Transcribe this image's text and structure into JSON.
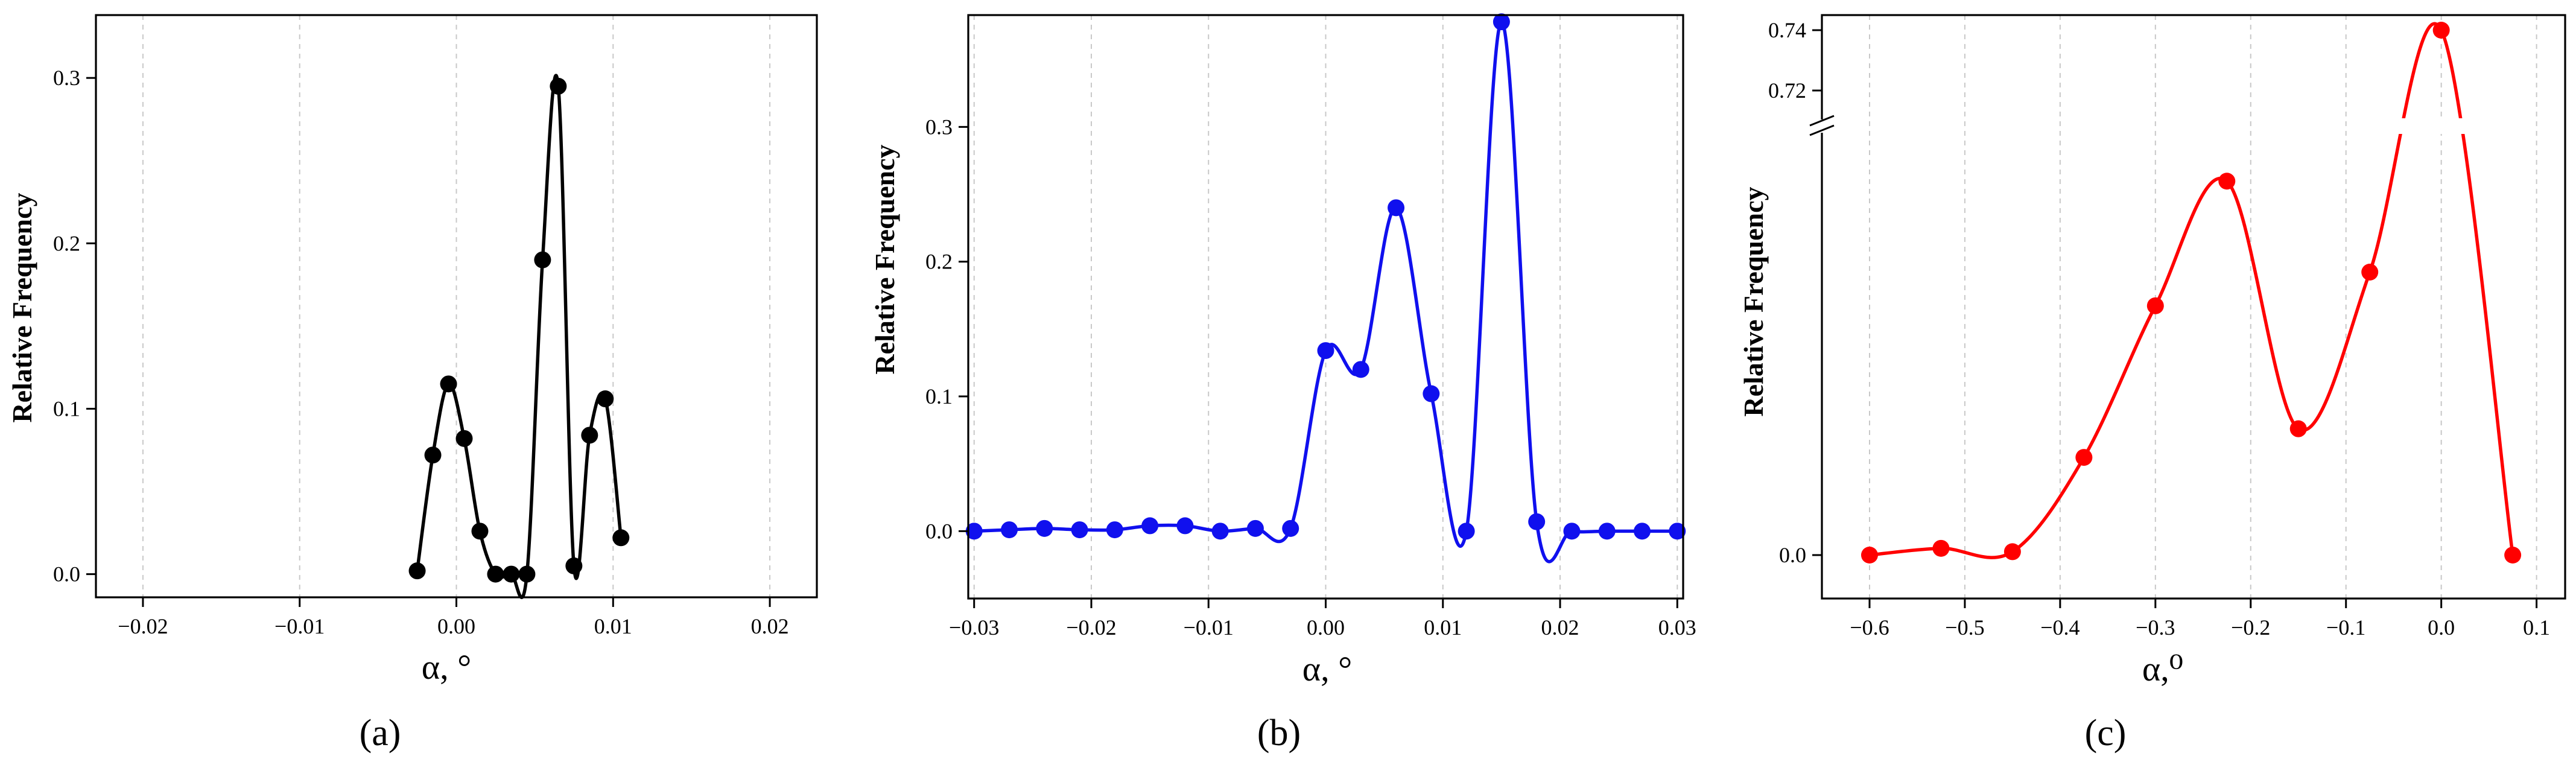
{
  "panels": [
    {
      "id": "a",
      "label": "(a)",
      "color": "#000000",
      "y_title": "Relative Frequency",
      "x_title": "α, °",
      "chart_data": {
        "type": "line",
        "title": "",
        "xlabel": "α, °",
        "ylabel": "Relative Frequency",
        "xlim": [
          -0.023,
          0.023
        ],
        "ylim": [
          -0.014,
          0.338
        ],
        "x_ticks": [
          -0.02,
          -0.01,
          0.0,
          0.01,
          0.02
        ],
        "x_tick_labels": [
          "−0.02",
          "−0.01",
          "0.00",
          "0.01",
          "0.02"
        ],
        "y_ticks": [
          0.0,
          0.1,
          0.2,
          0.3
        ],
        "y_tick_labels": [
          "0.0",
          "0.1",
          "0.2",
          "0.3"
        ],
        "grid": "vertical dotted",
        "series": [
          {
            "points": [
              [
                -0.0025,
                0.002
              ],
              [
                -0.0015,
                0.072
              ],
              [
                -0.0005,
                0.115
              ],
              [
                0.0005,
                0.082
              ],
              [
                0.0015,
                0.026
              ],
              [
                0.0025,
                0.0
              ],
              [
                0.0035,
                0.0
              ],
              [
                0.0045,
                0.0
              ],
              [
                0.0055,
                0.19
              ],
              [
                0.0065,
                0.295
              ],
              [
                0.0075,
                0.005
              ],
              [
                0.0085,
                0.084
              ],
              [
                0.0095,
                0.106
              ],
              [
                0.0105,
                0.022
              ]
            ]
          }
        ]
      }
    },
    {
      "id": "b",
      "label": "(b)",
      "color": "#1010ee",
      "y_title": "Relative Frequency",
      "x_title": "α, °",
      "chart_data": {
        "type": "line",
        "title": "",
        "xlabel": "α, °",
        "ylabel": "Relative Frequency",
        "xlim": [
          -0.0305,
          0.0305
        ],
        "ylim": [
          -0.05,
          0.383
        ],
        "x_ticks": [
          -0.03,
          -0.02,
          -0.01,
          0.0,
          0.01,
          0.02,
          0.03
        ],
        "x_tick_labels": [
          "−0.03",
          "−0.02",
          "−0.01",
          "0.00",
          "0.01",
          "0.02",
          "0.03"
        ],
        "y_ticks": [
          0.0,
          0.1,
          0.2,
          0.3
        ],
        "y_tick_labels": [
          "0.0",
          "0.1",
          "0.2",
          "0.3"
        ],
        "grid": "vertical dotted",
        "series": [
          {
            "points": [
              [
                -0.03,
                0.0
              ],
              [
                -0.027,
                0.001
              ],
              [
                -0.024,
                0.002
              ],
              [
                -0.021,
                0.001
              ],
              [
                -0.018,
                0.001
              ],
              [
                -0.015,
                0.004
              ],
              [
                -0.012,
                0.004
              ],
              [
                -0.009,
                0.0
              ],
              [
                -0.006,
                0.002
              ],
              [
                -0.003,
                0.002
              ],
              [
                0.0,
                0.134
              ],
              [
                0.003,
                0.12
              ],
              [
                0.006,
                0.24
              ],
              [
                0.009,
                0.102
              ],
              [
                0.012,
                0.0
              ],
              [
                0.015,
                0.378
              ],
              [
                0.018,
                0.007
              ],
              [
                0.021,
                0.0
              ],
              [
                0.024,
                0.0
              ],
              [
                0.027,
                0.0
              ],
              [
                0.03,
                0.0
              ]
            ]
          }
        ]
      }
    },
    {
      "id": "c",
      "label": "(c)",
      "color": "#ff0000",
      "y_title": "Relative Frequency",
      "x_title": "α,⁰",
      "chart_data": {
        "type": "line",
        "title": "",
        "xlabel": "α,⁰",
        "ylabel": "Relative Frequency",
        "xlim": [
          -0.65,
          0.13
        ],
        "x_ticks": [
          -0.6,
          -0.5,
          -0.4,
          -0.3,
          -0.2,
          -0.1,
          0.0,
          0.1
        ],
        "x_tick_labels": [
          "−0.6",
          "−0.5",
          "−0.4",
          "−0.3",
          "−0.2",
          "−0.1",
          "0.0",
          "0.1"
        ],
        "y_axis_break": true,
        "y_tick_labels_lower": [
          "0.0"
        ],
        "y_tick_labels_upper": [
          "0.72",
          "0.74"
        ],
        "y_ticks_upper": [
          0.72,
          0.74
        ],
        "grid": "vertical dotted",
        "series": [
          {
            "points": [
              [
                -0.6,
                0.0
              ],
              [
                -0.525,
                0.004
              ],
              [
                -0.45,
                0.002
              ],
              [
                -0.375,
                0.058
              ],
              [
                -0.3,
                0.148
              ],
              [
                -0.225,
                0.222
              ],
              [
                -0.15,
                0.075
              ],
              [
                -0.075,
                0.168
              ],
              [
                0.0,
                0.74
              ],
              [
                0.075,
                0.0
              ]
            ]
          }
        ]
      }
    }
  ]
}
